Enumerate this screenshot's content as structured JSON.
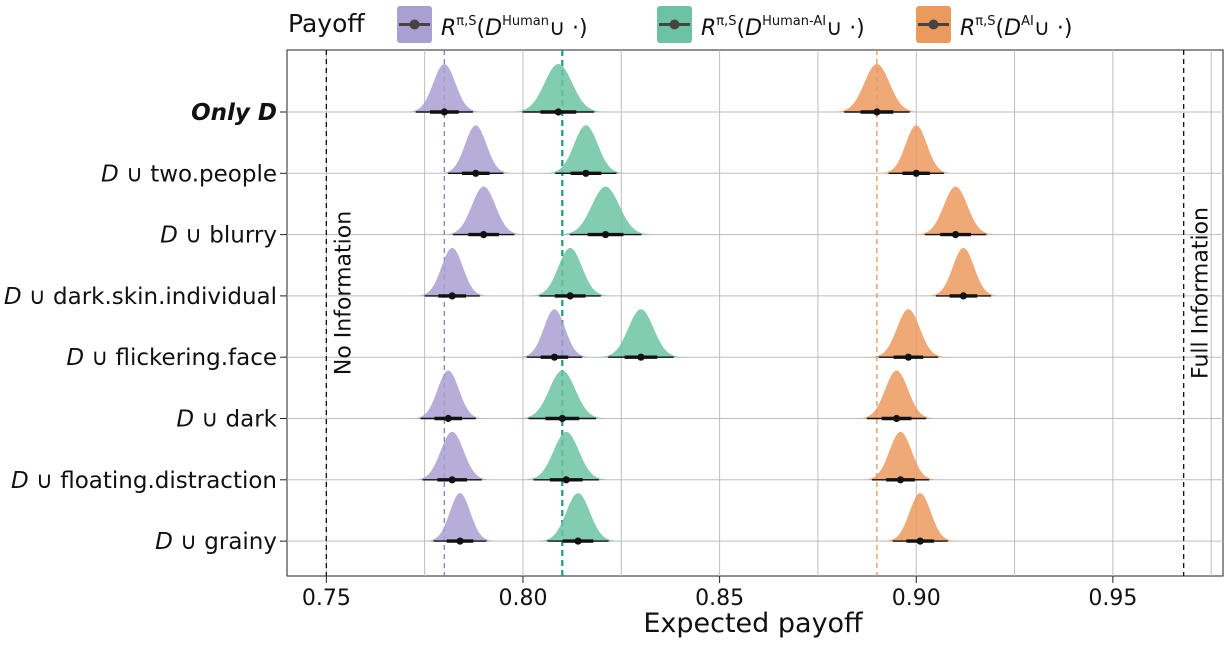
{
  "legend": {
    "title": "Payoff",
    "entries": [
      {
        "base": "R",
        "sup": "π,S",
        "open": "(",
        "d": "D",
        "dsup": "Human",
        "tail": "∪ ·)",
        "color": "#a99fd1"
      },
      {
        "base": "R",
        "sup": "π,S",
        "open": "(",
        "d": "D",
        "dsup": "Human-AI",
        "tail": "∪ ·)",
        "color": "#6cc3a3"
      },
      {
        "base": "R",
        "sup": "π,S",
        "open": "(",
        "d": "D",
        "dsup": "AI",
        "tail": "∪ ·)",
        "color": "#eb9a5e"
      }
    ]
  },
  "reference_lines": [
    {
      "label": "No Information",
      "x": 0.75
    },
    {
      "label": "Full Information",
      "x": 0.968
    }
  ],
  "chart_data": {
    "type": "distribution",
    "xlabel": "Expected payoff",
    "xlim": [
      0.74,
      0.978
    ],
    "xticks": [
      0.75,
      0.8,
      0.85,
      0.9,
      0.95
    ],
    "xtick_labels": [
      "0.75",
      "0.80",
      "0.85",
      "0.90",
      "0.95"
    ],
    "grid": true,
    "legend_position": "top",
    "categories": [
      {
        "prefix": "",
        "suffix": "Only D",
        "bold": true
      },
      {
        "prefix": "D",
        "suffix": " ∪ two.people",
        "bold": false
      },
      {
        "prefix": "D",
        "suffix": " ∪ blurry",
        "bold": false
      },
      {
        "prefix": "D",
        "suffix": " ∪ dark.skin.individual",
        "bold": false
      },
      {
        "prefix": "D",
        "suffix": " ∪ flickering.face",
        "bold": false
      },
      {
        "prefix": "D",
        "suffix": " ∪ dark",
        "bold": false
      },
      {
        "prefix": "D",
        "suffix": " ∪ floating.distraction",
        "bold": false
      },
      {
        "prefix": "D",
        "suffix": " ∪ grainy",
        "bold": false
      }
    ],
    "baseline_lines": [
      {
        "series": "Human",
        "x": 0.78,
        "color": "#7f74c0"
      },
      {
        "series": "Human-AI",
        "x": 0.81,
        "color": "#1b9e77"
      },
      {
        "series": "AI",
        "x": 0.89,
        "color": "#d98c4c"
      }
    ],
    "series": [
      {
        "name": "Human",
        "color": "#a99fd1",
        "means": [
          0.78,
          0.788,
          0.79,
          0.782,
          0.808,
          0.781,
          0.782,
          0.784
        ],
        "sd": [
          0.0028,
          0.0027,
          0.003,
          0.0027,
          0.0027,
          0.0027,
          0.0029,
          0.0026
        ]
      },
      {
        "name": "Human-AI",
        "color": "#6cc3a3",
        "means": [
          0.809,
          0.816,
          0.821,
          0.812,
          0.83,
          0.81,
          0.811,
          0.814
        ],
        "sd": [
          0.0035,
          0.003,
          0.0035,
          0.003,
          0.0032,
          0.0033,
          0.0032,
          0.003
        ]
      },
      {
        "name": "AI",
        "color": "#eb9a5e",
        "means": [
          0.89,
          0.9,
          0.91,
          0.912,
          0.898,
          0.895,
          0.896,
          0.901
        ],
        "sd": [
          0.0032,
          0.0027,
          0.003,
          0.0027,
          0.0029,
          0.0029,
          0.0028,
          0.0027
        ]
      }
    ]
  }
}
